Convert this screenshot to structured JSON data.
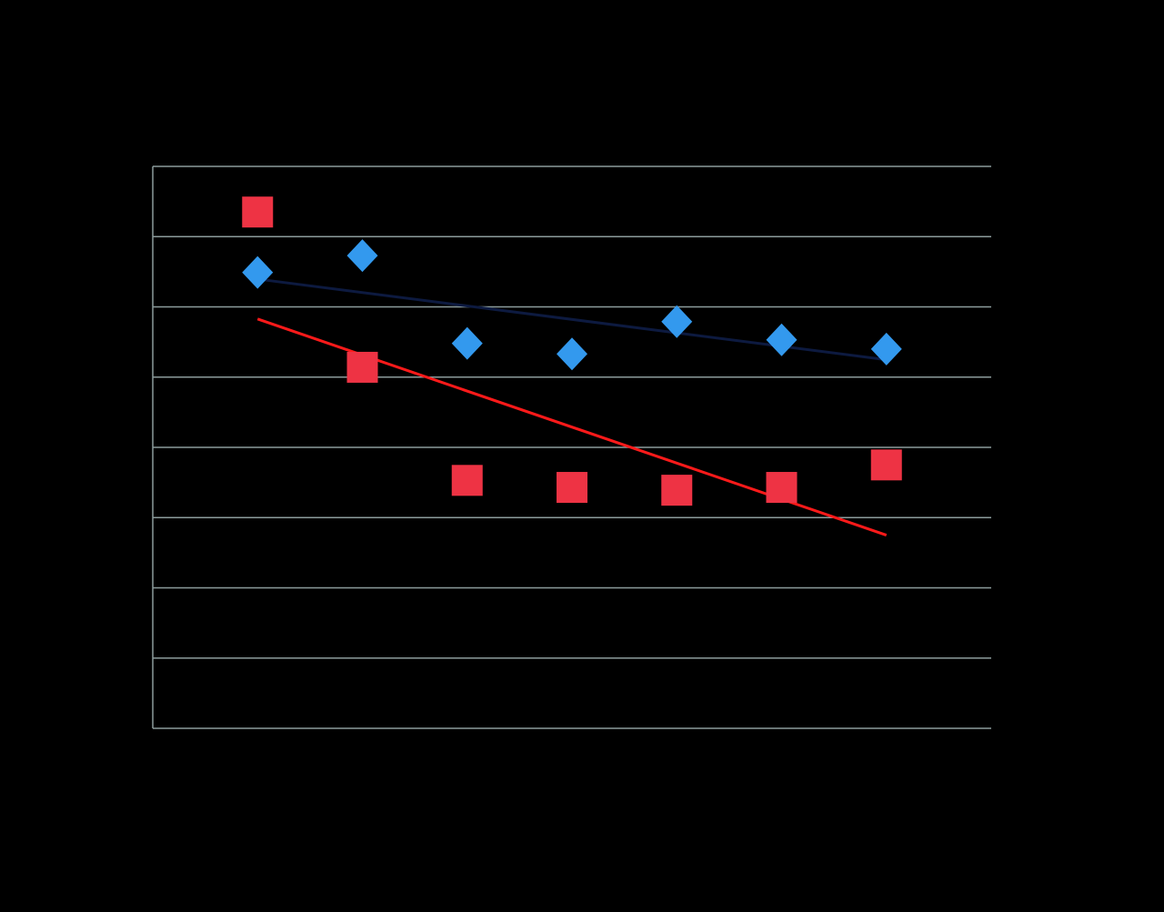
{
  "chart_data": {
    "type": "scatter",
    "xlim": [
      0,
      8
    ],
    "ylim": [
      0,
      8
    ],
    "yticks": [
      0,
      1,
      2,
      3,
      4,
      5,
      6,
      7,
      8
    ],
    "grid": true,
    "grid_color": "#8c9c9c",
    "trendline": true,
    "series": [
      {
        "marker": "diamond",
        "color": "#3399ee",
        "trend_color": "#0d1a40",
        "x": [
          1,
          2,
          3,
          4,
          5,
          6,
          7
        ],
        "values": [
          6.49,
          6.73,
          5.48,
          5.33,
          5.79,
          5.53,
          5.4
        ]
      },
      {
        "marker": "square",
        "color": "#ee3344",
        "trend_color": "#ff1a1a",
        "x": [
          1,
          2,
          3,
          4,
          5,
          6,
          7
        ],
        "values": [
          7.35,
          5.14,
          3.53,
          3.43,
          3.39,
          3.43,
          3.75
        ]
      }
    ]
  }
}
